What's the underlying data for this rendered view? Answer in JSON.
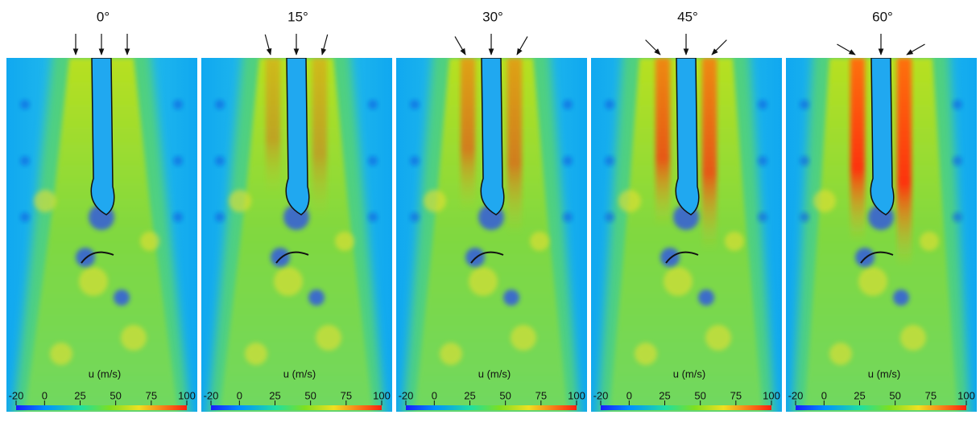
{
  "panels": [
    {
      "title": "0°",
      "colorbar": {
        "label": "u (m/s)",
        "ticks": [
          -20,
          0,
          25,
          50,
          75,
          100
        ]
      }
    },
    {
      "title": "15°",
      "colorbar": {
        "label": "u (m/s)",
        "ticks": [
          -20,
          0,
          25,
          50,
          75,
          100
        ]
      }
    },
    {
      "title": "30°",
      "colorbar": {
        "label": "u (m/s)",
        "ticks": [
          -20,
          0,
          25,
          50,
          75,
          100
        ]
      }
    },
    {
      "title": "45°",
      "colorbar": {
        "label": "u (m/s)",
        "ticks": [
          -20,
          0,
          25,
          50,
          75,
          100
        ]
      }
    },
    {
      "title": "60°",
      "colorbar": {
        "label": "u (m/s)",
        "ticks": [
          -20,
          0,
          25,
          50,
          75,
          100
        ]
      }
    }
  ]
}
